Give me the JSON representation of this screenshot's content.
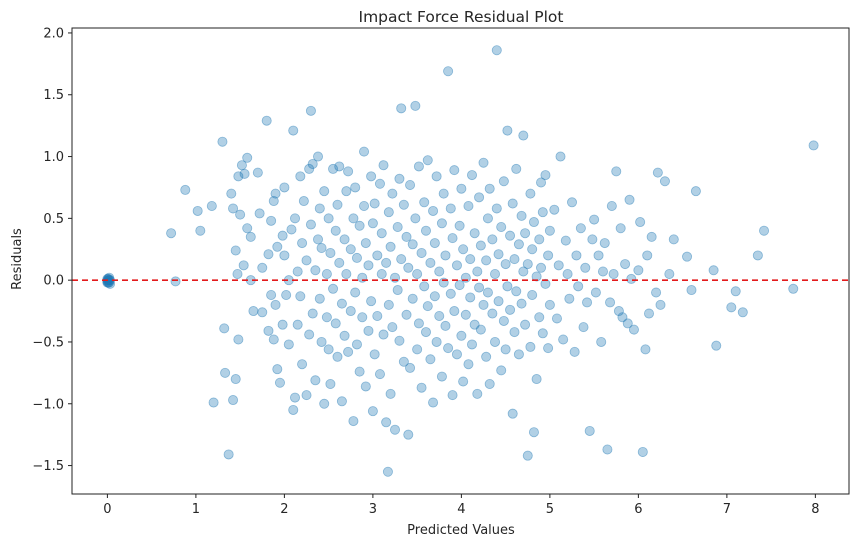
{
  "chart_data": {
    "type": "scatter",
    "title": "Impact Force Residual Plot",
    "xlabel": "Predicted Values",
    "ylabel": "Residuals",
    "xlim": [
      -0.4,
      8.38
    ],
    "ylim": [
      -1.73,
      2.04
    ],
    "x_ticks": [
      0,
      1,
      2,
      3,
      4,
      5,
      6,
      7,
      8
    ],
    "y_ticks": [
      -1.5,
      -1.0,
      -0.5,
      0.0,
      0.5,
      1.0,
      1.5,
      2.0
    ],
    "x_tick_labels": [
      "0",
      "1",
      "2",
      "3",
      "4",
      "5",
      "6",
      "7",
      "8"
    ],
    "y_tick_labels": [
      "−1.5",
      "−1.0",
      "−0.5",
      "0.0",
      "0.5",
      "1.0",
      "1.5",
      "2.0"
    ],
    "grid": false,
    "reference_line": {
      "y": 0,
      "style": "dashed",
      "color": "#e31a1c"
    },
    "point_color": "#1f77b4",
    "point_alpha": 0.35,
    "points": [
      [
        0.0,
        0.01
      ],
      [
        0.0,
        -0.01
      ],
      [
        0.01,
        0.0
      ],
      [
        0.02,
        -0.02
      ],
      [
        0.01,
        0.01
      ],
      [
        0.03,
        -0.03
      ],
      [
        0.0,
        0.0
      ],
      [
        0.02,
        0.0
      ],
      [
        0.01,
        -0.02
      ],
      [
        0.03,
        0.0
      ],
      [
        0.02,
        0.02
      ],
      [
        0.0,
        -0.02
      ],
      [
        0.72,
        0.38
      ],
      [
        0.77,
        -0.01
      ],
      [
        0.88,
        0.73
      ],
      [
        1.02,
        0.56
      ],
      [
        1.05,
        0.4
      ],
      [
        1.18,
        0.6
      ],
      [
        1.2,
        -0.99
      ],
      [
        1.3,
        1.12
      ],
      [
        1.32,
        -0.39
      ],
      [
        1.33,
        -0.75
      ],
      [
        1.37,
        -1.41
      ],
      [
        1.4,
        0.7
      ],
      [
        1.42,
        0.58
      ],
      [
        1.42,
        -0.97
      ],
      [
        1.45,
        0.24
      ],
      [
        1.45,
        -0.8
      ],
      [
        1.47,
        0.05
      ],
      [
        1.48,
        0.84
      ],
      [
        1.48,
        -0.48
      ],
      [
        1.5,
        0.53
      ],
      [
        1.52,
        0.93
      ],
      [
        1.54,
        0.12
      ],
      [
        1.55,
        0.86
      ],
      [
        1.58,
        0.42
      ],
      [
        1.58,
        0.99
      ],
      [
        1.62,
        0.35
      ],
      [
        1.62,
        0.0
      ],
      [
        1.65,
        -0.25
      ],
      [
        1.7,
        0.87
      ],
      [
        1.72,
        0.54
      ],
      [
        1.75,
        0.1
      ],
      [
        1.75,
        -0.26
      ],
      [
        1.8,
        1.29
      ],
      [
        1.82,
        0.21
      ],
      [
        1.82,
        -0.41
      ],
      [
        1.85,
        0.48
      ],
      [
        1.85,
        -0.12
      ],
      [
        1.88,
        0.64
      ],
      [
        1.88,
        -0.48
      ],
      [
        1.9,
        -0.2
      ],
      [
        1.9,
        0.7
      ],
      [
        1.92,
        0.27
      ],
      [
        1.92,
        -0.72
      ],
      [
        1.95,
        -0.83
      ],
      [
        1.98,
        0.36
      ],
      [
        1.98,
        -0.36
      ],
      [
        2.0,
        0.2
      ],
      [
        2.0,
        0.75
      ],
      [
        2.02,
        -0.12
      ],
      [
        2.05,
        0.0
      ],
      [
        2.05,
        -0.52
      ],
      [
        2.08,
        0.41
      ],
      [
        2.1,
        1.21
      ],
      [
        2.1,
        -1.05
      ],
      [
        2.12,
        0.5
      ],
      [
        2.12,
        -0.95
      ],
      [
        2.15,
        0.07
      ],
      [
        2.15,
        -0.36
      ],
      [
        2.18,
        0.84
      ],
      [
        2.18,
        -0.13
      ],
      [
        2.2,
        0.3
      ],
      [
        2.2,
        -0.68
      ],
      [
        2.22,
        0.64
      ],
      [
        2.25,
        0.16
      ],
      [
        2.25,
        -0.93
      ],
      [
        2.28,
        0.9
      ],
      [
        2.28,
        -0.44
      ],
      [
        2.3,
        1.37
      ],
      [
        2.3,
        0.45
      ],
      [
        2.32,
        -0.27
      ],
      [
        2.32,
        0.94
      ],
      [
        2.35,
        0.08
      ],
      [
        2.35,
        -0.81
      ],
      [
        2.38,
        0.33
      ],
      [
        2.38,
        1.0
      ],
      [
        2.4,
        -0.15
      ],
      [
        2.4,
        0.58
      ],
      [
        2.42,
        -0.5
      ],
      [
        2.42,
        0.26
      ],
      [
        2.45,
        -1.0
      ],
      [
        2.45,
        0.72
      ],
      [
        2.48,
        -0.3
      ],
      [
        2.48,
        0.05
      ],
      [
        2.5,
        0.5
      ],
      [
        2.5,
        -0.56
      ],
      [
        2.52,
        0.22
      ],
      [
        2.52,
        -0.84
      ],
      [
        2.55,
        0.9
      ],
      [
        2.55,
        -0.07
      ],
      [
        2.58,
        0.4
      ],
      [
        2.58,
        -0.35
      ],
      [
        2.6,
        0.61
      ],
      [
        2.6,
        -0.62
      ],
      [
        2.62,
        0.14
      ],
      [
        2.62,
        0.92
      ],
      [
        2.65,
        -0.19
      ],
      [
        2.65,
        -0.98
      ],
      [
        2.68,
        0.33
      ],
      [
        2.68,
        -0.45
      ],
      [
        2.7,
        0.72
      ],
      [
        2.7,
        0.05
      ],
      [
        2.72,
        -0.58
      ],
      [
        2.72,
        0.88
      ],
      [
        2.75,
        0.25
      ],
      [
        2.75,
        -0.25
      ],
      [
        2.78,
        -1.14
      ],
      [
        2.78,
        0.5
      ],
      [
        2.8,
        -0.1
      ],
      [
        2.8,
        0.75
      ],
      [
        2.82,
        0.18
      ],
      [
        2.82,
        -0.52
      ],
      [
        2.85,
        -0.74
      ],
      [
        2.85,
        0.44
      ],
      [
        2.88,
        0.02
      ],
      [
        2.88,
        -0.3
      ],
      [
        2.9,
        1.04
      ],
      [
        2.9,
        0.6
      ],
      [
        2.92,
        -0.86
      ],
      [
        2.92,
        0.3
      ],
      [
        2.95,
        -0.41
      ],
      [
        2.95,
        0.12
      ],
      [
        2.98,
        0.84
      ],
      [
        2.98,
        -0.17
      ],
      [
        3.0,
        0.46
      ],
      [
        3.0,
        -1.06
      ],
      [
        3.02,
        0.62
      ],
      [
        3.02,
        -0.6
      ],
      [
        3.05,
        0.2
      ],
      [
        3.05,
        -0.29
      ],
      [
        3.08,
        0.78
      ],
      [
        3.08,
        -0.76
      ],
      [
        3.1,
        0.05
      ],
      [
        3.1,
        0.38
      ],
      [
        3.12,
        -0.44
      ],
      [
        3.12,
        0.93
      ],
      [
        3.15,
        -1.15
      ],
      [
        3.15,
        0.14
      ],
      [
        3.17,
        -1.55
      ],
      [
        3.18,
        0.55
      ],
      [
        3.18,
        -0.2
      ],
      [
        3.2,
        0.27
      ],
      [
        3.2,
        -0.92
      ],
      [
        3.22,
        0.7
      ],
      [
        3.22,
        -0.38
      ],
      [
        3.25,
        -1.21
      ],
      [
        3.25,
        0.02
      ],
      [
        3.28,
        0.43
      ],
      [
        3.28,
        -0.08
      ],
      [
        3.3,
        0.82
      ],
      [
        3.3,
        -0.49
      ],
      [
        3.32,
        1.39
      ],
      [
        3.32,
        0.17
      ],
      [
        3.35,
        -0.66
      ],
      [
        3.35,
        0.61
      ],
      [
        3.38,
        -0.28
      ],
      [
        3.38,
        0.35
      ],
      [
        3.4,
        -1.25
      ],
      [
        3.4,
        0.1
      ],
      [
        3.42,
        0.77
      ],
      [
        3.42,
        -0.71
      ],
      [
        3.45,
        0.29
      ],
      [
        3.45,
        -0.15
      ],
      [
        3.48,
        1.41
      ],
      [
        3.48,
        0.5
      ],
      [
        3.5,
        -0.56
      ],
      [
        3.5,
        0.05
      ],
      [
        3.52,
        0.92
      ],
      [
        3.52,
        -0.35
      ],
      [
        3.55,
        0.22
      ],
      [
        3.55,
        -0.87
      ],
      [
        3.58,
        0.63
      ],
      [
        3.58,
        -0.05
      ],
      [
        3.6,
        -0.42
      ],
      [
        3.6,
        0.4
      ],
      [
        3.62,
        0.97
      ],
      [
        3.62,
        -0.21
      ],
      [
        3.65,
        0.14
      ],
      [
        3.65,
        -0.64
      ],
      [
        3.68,
        0.56
      ],
      [
        3.68,
        -0.99
      ],
      [
        3.7,
        0.3
      ],
      [
        3.7,
        -0.13
      ],
      [
        3.72,
        0.84
      ],
      [
        3.72,
        -0.5
      ],
      [
        3.75,
        0.07
      ],
      [
        3.75,
        -0.29
      ],
      [
        3.78,
        0.46
      ],
      [
        3.78,
        -0.78
      ],
      [
        3.8,
        0.7
      ],
      [
        3.8,
        -0.02
      ],
      [
        3.82,
        -0.37
      ],
      [
        3.82,
        0.2
      ],
      [
        3.85,
        1.69
      ],
      [
        3.85,
        -0.55
      ],
      [
        3.88,
        0.58
      ],
      [
        3.88,
        -0.11
      ],
      [
        3.9,
        0.34
      ],
      [
        3.9,
        -0.93
      ],
      [
        3.92,
        0.89
      ],
      [
        3.92,
        -0.25
      ],
      [
        3.95,
        0.12
      ],
      [
        3.95,
        -0.6
      ],
      [
        3.98,
        0.44
      ],
      [
        3.98,
        -0.04
      ],
      [
        4.0,
        0.74
      ],
      [
        4.0,
        -0.45
      ],
      [
        4.02,
        0.25
      ],
      [
        4.02,
        -0.82
      ],
      [
        4.05,
        0.02
      ],
      [
        4.05,
        -0.28
      ],
      [
        4.08,
        0.6
      ],
      [
        4.08,
        -0.68
      ],
      [
        4.1,
        0.17
      ],
      [
        4.1,
        -0.14
      ],
      [
        4.12,
        0.85
      ],
      [
        4.12,
        -0.52
      ],
      [
        4.15,
        0.38
      ],
      [
        4.15,
        -0.36
      ],
      [
        4.18,
        0.07
      ],
      [
        4.18,
        -0.92
      ],
      [
        4.2,
        0.67
      ],
      [
        4.2,
        -0.06
      ],
      [
        4.22,
        0.28
      ],
      [
        4.22,
        -0.4
      ],
      [
        4.25,
        0.95
      ],
      [
        4.25,
        -0.2
      ],
      [
        4.28,
        0.16
      ],
      [
        4.28,
        -0.62
      ],
      [
        4.3,
        0.5
      ],
      [
        4.3,
        -0.1
      ],
      [
        4.32,
        0.74
      ],
      [
        4.32,
        -0.84
      ],
      [
        4.35,
        0.33
      ],
      [
        4.35,
        -0.27
      ],
      [
        4.38,
        0.05
      ],
      [
        4.38,
        -0.5
      ],
      [
        4.4,
        1.86
      ],
      [
        4.4,
        0.58
      ],
      [
        4.42,
        -0.17
      ],
      [
        4.42,
        0.21
      ],
      [
        4.45,
        -0.73
      ],
      [
        4.45,
        0.43
      ],
      [
        4.48,
        0.8
      ],
      [
        4.48,
        -0.33
      ],
      [
        4.5,
        0.13
      ],
      [
        4.5,
        -0.56
      ],
      [
        4.52,
        1.21
      ],
      [
        4.52,
        -0.05
      ],
      [
        4.55,
        0.36
      ],
      [
        4.55,
        -0.24
      ],
      [
        4.58,
        0.62
      ],
      [
        4.58,
        -1.08
      ],
      [
        4.6,
        0.17
      ],
      [
        4.6,
        -0.42
      ],
      [
        4.62,
        0.9
      ],
      [
        4.62,
        -0.09
      ],
      [
        4.65,
        0.29
      ],
      [
        4.65,
        -0.6
      ],
      [
        4.68,
        0.52
      ],
      [
        4.68,
        -0.19
      ],
      [
        4.7,
        1.17
      ],
      [
        4.7,
        0.07
      ],
      [
        4.72,
        -0.36
      ],
      [
        4.72,
        0.38
      ],
      [
        4.75,
        -1.42
      ],
      [
        4.75,
        0.13
      ],
      [
        4.78,
        0.7
      ],
      [
        4.78,
        -0.54
      ],
      [
        4.8,
        0.25
      ],
      [
        4.8,
        -0.12
      ],
      [
        4.82,
        0.47
      ],
      [
        4.82,
        -1.23
      ],
      [
        4.85,
        0.03
      ],
      [
        4.85,
        -0.8
      ],
      [
        4.88,
        0.33
      ],
      [
        4.88,
        -0.3
      ],
      [
        4.9,
        0.79
      ],
      [
        4.9,
        0.1
      ],
      [
        4.92,
        -0.43
      ],
      [
        4.92,
        0.55
      ],
      [
        4.95,
        -0.03
      ],
      [
        4.95,
        0.85
      ],
      [
        4.98,
        -0.55
      ],
      [
        4.98,
        0.2
      ],
      [
        5.0,
        0.4
      ],
      [
        5.0,
        -0.2
      ],
      [
        5.05,
        0.57
      ],
      [
        5.08,
        -0.31
      ],
      [
        5.1,
        0.12
      ],
      [
        5.12,
        1.0
      ],
      [
        5.15,
        -0.48
      ],
      [
        5.18,
        0.32
      ],
      [
        5.2,
        0.05
      ],
      [
        5.22,
        -0.15
      ],
      [
        5.25,
        0.63
      ],
      [
        5.28,
        -0.58
      ],
      [
        5.3,
        0.2
      ],
      [
        5.32,
        -0.05
      ],
      [
        5.35,
        0.42
      ],
      [
        5.38,
        -0.38
      ],
      [
        5.4,
        0.1
      ],
      [
        5.42,
        -0.18
      ],
      [
        5.45,
        -1.22
      ],
      [
        5.48,
        0.33
      ],
      [
        5.5,
        0.49
      ],
      [
        5.52,
        -0.1
      ],
      [
        5.55,
        0.2
      ],
      [
        5.58,
        -0.5
      ],
      [
        5.6,
        0.07
      ],
      [
        5.62,
        0.3
      ],
      [
        5.65,
        -1.37
      ],
      [
        5.68,
        -0.18
      ],
      [
        5.7,
        0.6
      ],
      [
        5.72,
        0.05
      ],
      [
        5.75,
        0.88
      ],
      [
        5.78,
        -0.25
      ],
      [
        5.8,
        0.42
      ],
      [
        5.82,
        -0.3
      ],
      [
        5.85,
        0.13
      ],
      [
        5.88,
        -0.35
      ],
      [
        5.9,
        0.65
      ],
      [
        5.92,
        0.01
      ],
      [
        5.95,
        -0.4
      ],
      [
        6.0,
        0.08
      ],
      [
        6.02,
        0.47
      ],
      [
        6.05,
        -1.39
      ],
      [
        6.08,
        -0.56
      ],
      [
        6.1,
        0.2
      ],
      [
        6.12,
        -0.27
      ],
      [
        6.15,
        0.35
      ],
      [
        6.2,
        -0.1
      ],
      [
        6.22,
        0.87
      ],
      [
        6.25,
        -0.2
      ],
      [
        6.3,
        0.8
      ],
      [
        6.35,
        0.05
      ],
      [
        6.4,
        0.33
      ],
      [
        6.55,
        0.19
      ],
      [
        6.6,
        -0.08
      ],
      [
        6.65,
        0.72
      ],
      [
        6.85,
        0.08
      ],
      [
        6.88,
        -0.53
      ],
      [
        7.05,
        -0.22
      ],
      [
        7.1,
        -0.09
      ],
      [
        7.18,
        -0.26
      ],
      [
        7.35,
        0.2
      ],
      [
        7.42,
        0.4
      ],
      [
        7.75,
        -0.07
      ],
      [
        7.98,
        1.09
      ]
    ]
  }
}
